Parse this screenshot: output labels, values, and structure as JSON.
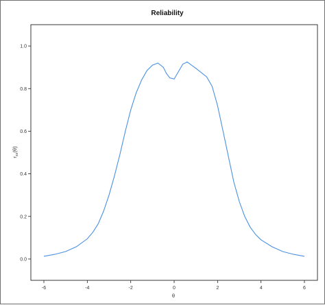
{
  "chart_data": {
    "type": "line",
    "title": "Reliability",
    "xlabel": "θ",
    "ylabel": "r",
    "ylabel_sub": "xx",
    "ylabel_arg": "(θ)",
    "xlim": [
      -6.6,
      6.6
    ],
    "ylim": [
      -0.1,
      1.1
    ],
    "x_ticks": [
      -6,
      -4,
      -2,
      0,
      2,
      4,
      6
    ],
    "y_ticks": [
      0.0,
      0.2,
      0.4,
      0.6,
      0.8,
      1.0
    ],
    "x_tick_labels": [
      "-6",
      "-4",
      "-2",
      "0",
      "2",
      "4",
      "6"
    ],
    "y_tick_labels": [
      "0.0",
      "0.2",
      "0.4",
      "0.6",
      "0.8",
      "1.0"
    ],
    "grid": false,
    "line_color": "#4a90e2",
    "series": [
      {
        "x": [
          -6.0,
          -5.5,
          -5.0,
          -4.5,
          -4.0,
          -3.75,
          -3.5,
          -3.25,
          -3.0,
          -2.75,
          -2.5,
          -2.25,
          -2.0,
          -1.75,
          -1.5,
          -1.25,
          -1.0,
          -0.75,
          -0.5,
          -0.35,
          -0.2,
          0.0,
          0.2,
          0.4,
          0.6,
          0.8,
          1.0,
          1.25,
          1.5,
          1.75,
          2.0,
          2.25,
          2.5,
          2.75,
          3.0,
          3.25,
          3.5,
          3.75,
          4.0,
          4.5,
          5.0,
          5.5,
          6.0
        ],
        "y": [
          0.013,
          0.022,
          0.035,
          0.058,
          0.095,
          0.125,
          0.165,
          0.225,
          0.3,
          0.39,
          0.49,
          0.6,
          0.7,
          0.78,
          0.84,
          0.885,
          0.91,
          0.92,
          0.9,
          0.87,
          0.85,
          0.845,
          0.88,
          0.915,
          0.925,
          0.91,
          0.895,
          0.875,
          0.855,
          0.81,
          0.72,
          0.6,
          0.48,
          0.36,
          0.27,
          0.2,
          0.15,
          0.115,
          0.09,
          0.058,
          0.035,
          0.022,
          0.013
        ]
      }
    ]
  }
}
